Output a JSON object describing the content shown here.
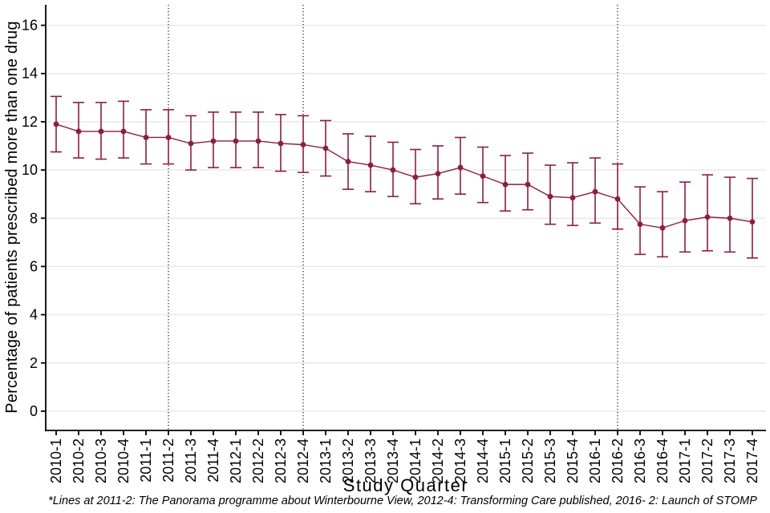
{
  "chart_data": {
    "type": "line",
    "title": "",
    "xlabel": "Study Quarter",
    "ylabel": "Percentage of patients prescribed more than one drug",
    "footnote": "*Lines at 2011-2: The Panorama programme about Winterbourne View, 2012-4: Transforming Care published, 2016- 2: Launch of STOMP",
    "categories": [
      "2010-1",
      "2010-2",
      "2010-3",
      "2010-4",
      "2011-1",
      "2011-2",
      "2011-3",
      "2011-4",
      "2012-1",
      "2012-2",
      "2012-3",
      "2012-4",
      "2013-1",
      "2013-2",
      "2013-3",
      "2013-4",
      "2014-1",
      "2014-2",
      "2014-3",
      "2014-4",
      "2015-1",
      "2015-2",
      "2015-3",
      "2015-4",
      "2016-1",
      "2016-2",
      "2016-3",
      "2016-4",
      "2017-1",
      "2017-2",
      "2017-3",
      "2017-4"
    ],
    "series": [
      {
        "name": "Percentage of patients prescribed more than one drug",
        "values": [
          11.9,
          11.6,
          11.6,
          11.6,
          11.35,
          11.35,
          11.1,
          11.2,
          11.2,
          11.2,
          11.1,
          11.05,
          10.9,
          10.35,
          10.2,
          10.0,
          9.7,
          9.85,
          10.1,
          9.75,
          9.4,
          9.4,
          8.9,
          8.85,
          9.1,
          8.8,
          7.75,
          7.6,
          7.9,
          8.05,
          8.0,
          7.85
        ],
        "ci_low": [
          10.75,
          10.5,
          10.45,
          10.5,
          10.25,
          10.25,
          10.0,
          10.1,
          10.1,
          10.1,
          9.95,
          9.9,
          9.75,
          9.2,
          9.1,
          8.9,
          8.6,
          8.8,
          9.0,
          8.65,
          8.3,
          8.35,
          7.75,
          7.7,
          7.8,
          7.55,
          6.5,
          6.4,
          6.6,
          6.65,
          6.6,
          6.35
        ],
        "ci_high": [
          13.05,
          12.8,
          12.8,
          12.85,
          12.5,
          12.5,
          12.25,
          12.4,
          12.4,
          12.4,
          12.3,
          12.25,
          12.05,
          11.5,
          11.4,
          11.15,
          10.85,
          11.0,
          11.35,
          10.95,
          10.6,
          10.7,
          10.2,
          10.3,
          10.5,
          10.25,
          9.3,
          9.1,
          9.5,
          9.8,
          9.7,
          9.65
        ]
      }
    ],
    "reference_lines": [
      {
        "category": "2011-2",
        "event": "The Panorama programme about Winterbourne View"
      },
      {
        "category": "2012-4",
        "event": "Transforming Care published"
      },
      {
        "category": "2016-2",
        "event": "Launch of STOMP"
      }
    ],
    "yticks": [
      0,
      2,
      4,
      6,
      8,
      10,
      12,
      14,
      16
    ],
    "ylim": [
      -0.8,
      16.85
    ],
    "grid": "horizontal",
    "legend": "none",
    "colors": {
      "series": "#8b1e41",
      "grid": "#e8e8e8",
      "axis": "#000000",
      "reference_line": "#000000",
      "background": "#ffffff"
    }
  }
}
